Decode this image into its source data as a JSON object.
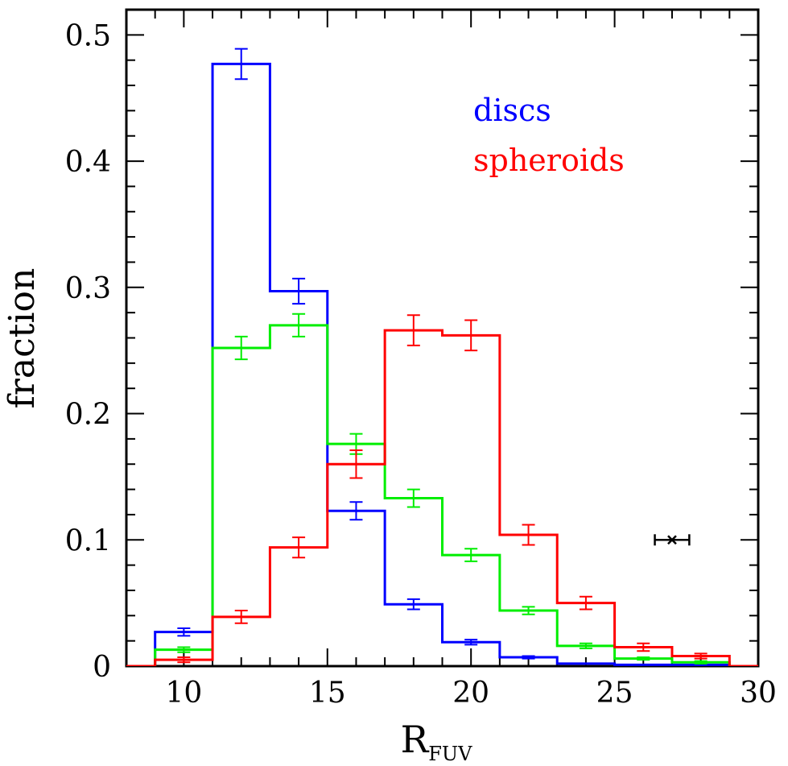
{
  "chart_data": {
    "type": "histogram",
    "xlabel": "R",
    "xlabel_subscript": "FUV",
    "ylabel": "fraction",
    "xlim": [
      8,
      30
    ],
    "ylim": [
      0,
      0.52
    ],
    "x_ticks": [
      "10",
      "15",
      "20",
      "25",
      "30"
    ],
    "y_ticks": [
      "0",
      "0.1",
      "0.2",
      "0.3",
      "0.4",
      "0.5"
    ],
    "bin_edges": [
      7,
      9,
      11,
      13,
      15,
      17,
      19,
      21,
      23,
      25,
      27,
      29,
      31
    ],
    "series": [
      {
        "name": "discs",
        "color": "#0000ff",
        "values": [
          0.0,
          0.027,
          0.477,
          0.297,
          0.123,
          0.049,
          0.019,
          0.007,
          0.002,
          0.001,
          0.001,
          0.0
        ],
        "errors": [
          0,
          0.003,
          0.012,
          0.01,
          0.007,
          0.004,
          0.002,
          0.001,
          0,
          0,
          0,
          0
        ]
      },
      {
        "name": "",
        "color": "#00ee00",
        "values": [
          0.0,
          0.013,
          0.252,
          0.27,
          0.176,
          0.133,
          0.088,
          0.044,
          0.016,
          0.006,
          0.003,
          0.0
        ],
        "errors": [
          0,
          0.002,
          0.009,
          0.009,
          0.008,
          0.007,
          0.005,
          0.003,
          0.002,
          0.001,
          0.001,
          0
        ]
      },
      {
        "name": "spheroids",
        "color": "#ff0000",
        "values": [
          0.0,
          0.005,
          0.039,
          0.094,
          0.16,
          0.266,
          0.262,
          0.104,
          0.05,
          0.015,
          0.008,
          0.0
        ],
        "errors": [
          0,
          0.002,
          0.005,
          0.008,
          0.011,
          0.012,
          0.012,
          0.008,
          0.005,
          0.003,
          0.002,
          0
        ]
      }
    ],
    "reference_error": {
      "x": 27,
      "y": 0.1,
      "xerr": 0.6,
      "color": "#000000"
    },
    "legend": {
      "position": "top-right",
      "entries": [
        {
          "label": "discs",
          "color": "#0000ff"
        },
        {
          "label": "spheroids",
          "color": "#ff0000"
        }
      ]
    }
  }
}
